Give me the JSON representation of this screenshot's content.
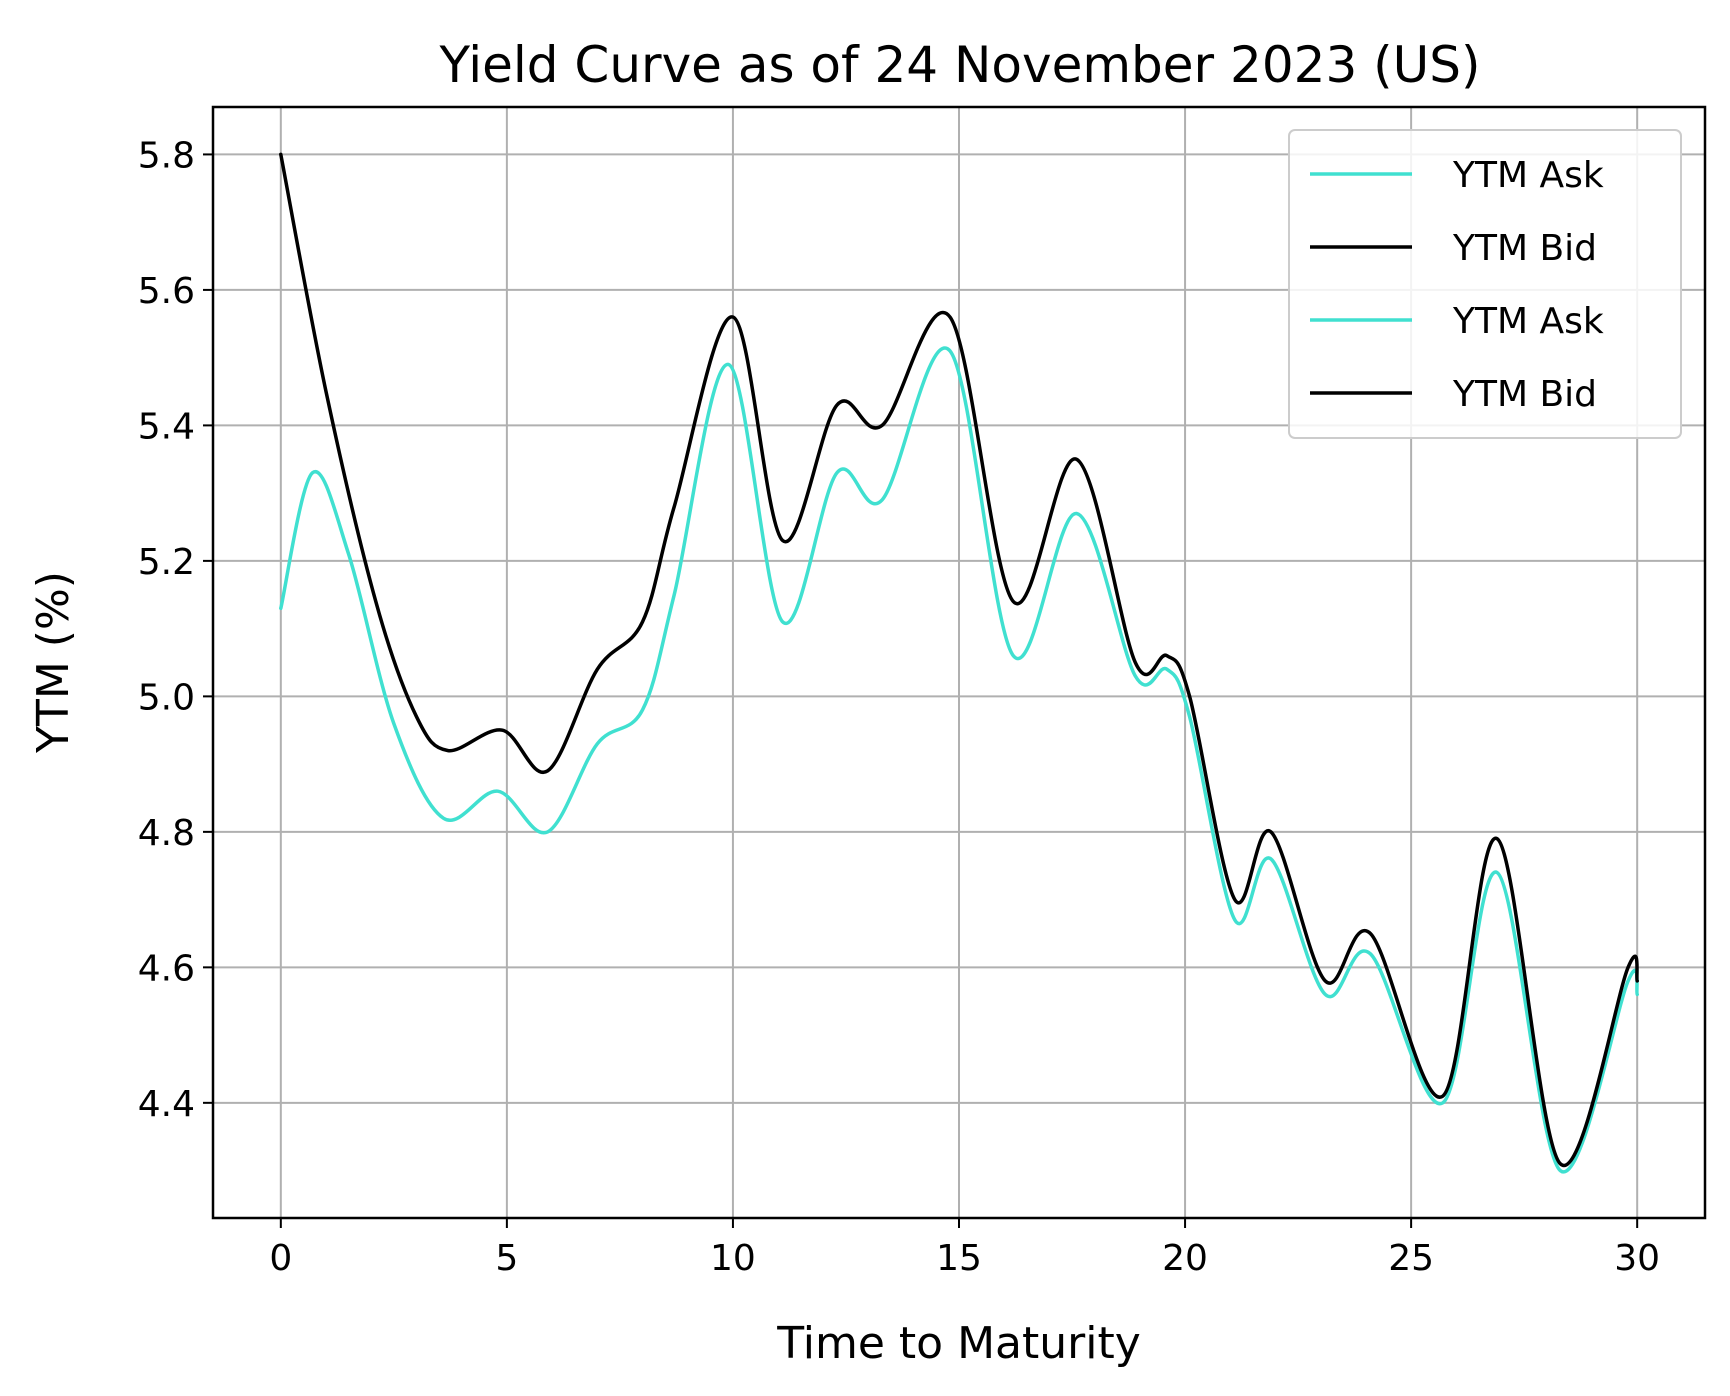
{
  "chart_data": {
    "type": "line",
    "title": "Yield Curve as of 24 November 2023 (US)",
    "xlabel": "Time to Maturity",
    "ylabel": "YTM (%)",
    "xlim": [
      -1.5,
      31.5
    ],
    "ylim": [
      4.23,
      5.87
    ],
    "xticks": [
      0,
      5,
      10,
      15,
      20,
      25,
      30
    ],
    "yticks": [
      4.4,
      4.6,
      4.8,
      5.0,
      5.2,
      5.4,
      5.6,
      5.8
    ],
    "xtick_labels": [
      "0",
      "5",
      "10",
      "15",
      "20",
      "25",
      "30"
    ],
    "ytick_labels": [
      "4.4",
      "4.6",
      "4.8",
      "5.0",
      "5.2",
      "5.4",
      "5.6",
      "5.8"
    ],
    "grid": true,
    "legend_position": "top-right",
    "legend": [
      "YTM Ask",
      "YTM Bid",
      "YTM Ask",
      "YTM Bid"
    ],
    "series": [
      {
        "name": "YTM Ask",
        "color": "#40e0d0",
        "x": [
          0,
          0.7,
          1.5,
          2.5,
          3.6,
          4.8,
          5.9,
          7.0,
          8.0,
          8.7,
          9.9,
          11.1,
          12.3,
          13.3,
          14.8,
          16.2,
          17.6,
          18.9,
          19.6,
          20.1,
          21.1,
          21.9,
          23.1,
          24.1,
          25.7,
          26.9,
          28.3,
          29.8,
          30.0
        ],
        "y": [
          5.13,
          5.33,
          5.21,
          4.96,
          4.82,
          4.86,
          4.8,
          4.93,
          4.98,
          5.15,
          5.49,
          5.11,
          5.33,
          5.29,
          5.51,
          5.06,
          5.27,
          5.03,
          5.04,
          4.97,
          4.67,
          4.76,
          4.56,
          4.62,
          4.4,
          4.74,
          4.3,
          4.58,
          4.56
        ]
      },
      {
        "name": "YTM Bid",
        "color": "#000000",
        "x": [
          0,
          1.0,
          2.1,
          3.0,
          3.7,
          4.9,
          5.9,
          7.0,
          8.0,
          8.7,
          10.0,
          11.1,
          12.3,
          13.3,
          14.8,
          16.2,
          17.6,
          18.9,
          19.6,
          20.1,
          21.1,
          21.9,
          23.1,
          24.1,
          25.7,
          26.9,
          28.3,
          29.8,
          30.0
        ],
        "y": [
          5.8,
          5.45,
          5.14,
          4.97,
          4.92,
          4.95,
          4.89,
          5.04,
          5.11,
          5.28,
          5.56,
          5.23,
          5.43,
          5.4,
          5.56,
          5.14,
          5.35,
          5.05,
          5.06,
          5.0,
          4.7,
          4.8,
          4.58,
          4.65,
          4.41,
          4.79,
          4.31,
          4.6,
          4.58
        ]
      }
    ]
  }
}
